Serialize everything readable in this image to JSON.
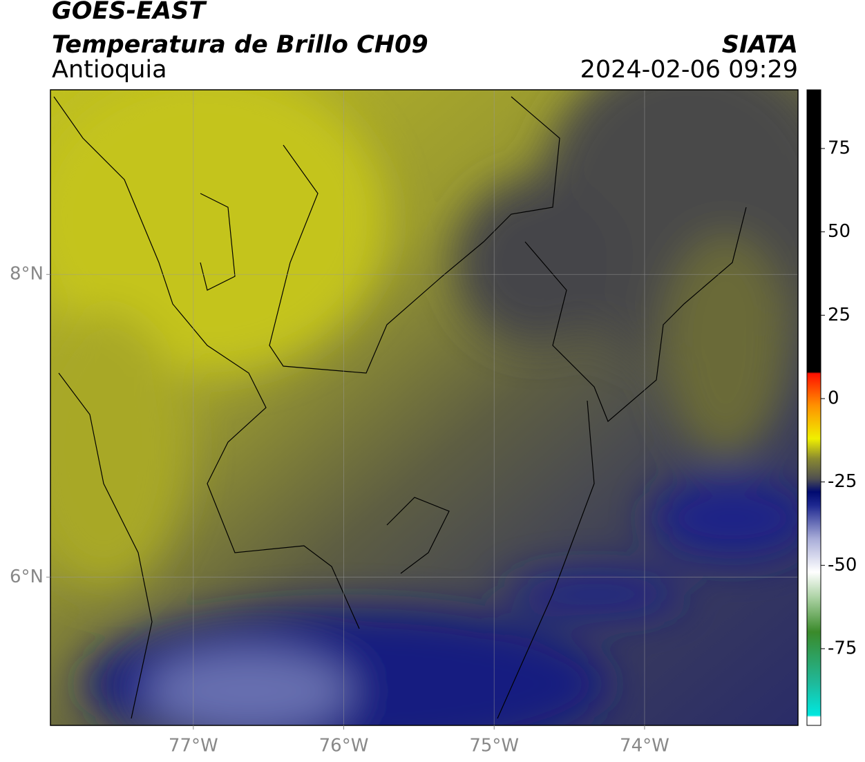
{
  "header": {
    "title": "GOES-EAST",
    "subtitle": "Temperatura de Brillo CH09",
    "region": "Antioquia",
    "source": "SIATA",
    "datetime": "2024-02-06 09:29"
  },
  "map": {
    "xlim": [
      -77.95,
      -72.98
    ],
    "ylim": [
      5.02,
      9.22
    ],
    "xticks": [
      {
        "value": -77,
        "label": "77°W"
      },
      {
        "value": -76,
        "label": "76°W"
      },
      {
        "value": -75,
        "label": "75°W"
      },
      {
        "value": -74,
        "label": "74°W"
      }
    ],
    "yticks": [
      {
        "value": 8,
        "label": "8°N"
      },
      {
        "value": 6,
        "label": "6°N"
      }
    ],
    "grid": true
  },
  "colorbar": {
    "lim": [
      -98,
      92.6
    ],
    "ticks": [
      75,
      50,
      25,
      0,
      -25,
      -50,
      -75
    ],
    "colormap": [
      {
        "value": -98,
        "color": "#ffffff"
      },
      {
        "value": -95.5,
        "color": "#ffffff"
      },
      {
        "value": -95,
        "color": "#00e8e0"
      },
      {
        "value": -85,
        "color": "#20b898"
      },
      {
        "value": -70,
        "color": "#3a8a2a"
      },
      {
        "value": -60,
        "color": "#a8d0a0"
      },
      {
        "value": -52,
        "color": "#ffffff"
      },
      {
        "value": -42,
        "color": "#a8acd8"
      },
      {
        "value": -32,
        "color": "#1e2890"
      },
      {
        "value": -28,
        "color": "#000a70"
      },
      {
        "value": -24,
        "color": "#505050"
      },
      {
        "value": -18,
        "color": "#8a8a30"
      },
      {
        "value": -12,
        "color": "#f0f000"
      },
      {
        "value": -2,
        "color": "#ff9000"
      },
      {
        "value": 7.5,
        "color": "#ff1000"
      },
      {
        "value": 8,
        "color": "#000000"
      },
      {
        "value": 92.6,
        "color": "#000000"
      }
    ]
  }
}
